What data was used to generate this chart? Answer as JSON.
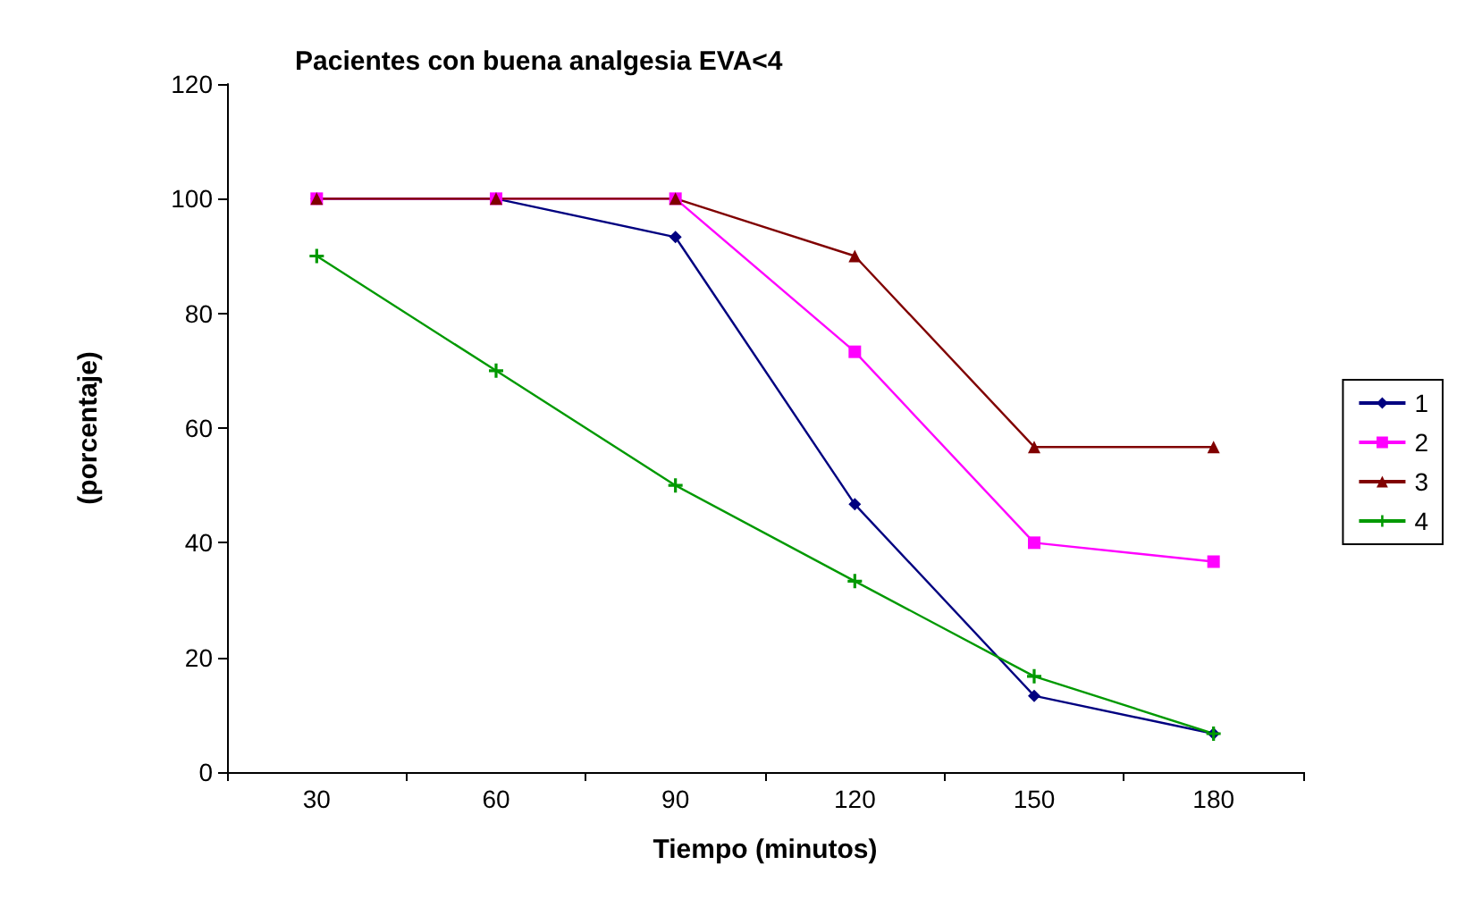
{
  "chart_data": {
    "type": "line",
    "title": "Pacientes con buena analgesia EVA<4",
    "xlabel": "Tiempo (minutos)",
    "ylabel": "(porcentaje)",
    "categories": [
      "30",
      "60",
      "90",
      "120",
      "150",
      "180"
    ],
    "ylim": [
      0,
      120
    ],
    "yticks": [
      0,
      20,
      40,
      60,
      80,
      100,
      120
    ],
    "grid": false,
    "legend": "right",
    "line_style": "solid",
    "series": [
      {
        "name": "1",
        "color": "#000080",
        "marker": "diamond",
        "values": [
          100,
          100,
          93.3,
          46.7,
          13.3,
          6.7
        ]
      },
      {
        "name": "2",
        "color": "#ff00ff",
        "marker": "square",
        "values": [
          100,
          100,
          100,
          73.3,
          40,
          36.7
        ]
      },
      {
        "name": "3",
        "color": "#800000",
        "marker": "triangle",
        "values": [
          100,
          100,
          100,
          90,
          56.7,
          56.7
        ]
      },
      {
        "name": "4",
        "color": "#009900",
        "marker": "cross",
        "values": [
          90,
          70,
          50,
          33.3,
          16.7,
          6.7
        ]
      }
    ]
  }
}
